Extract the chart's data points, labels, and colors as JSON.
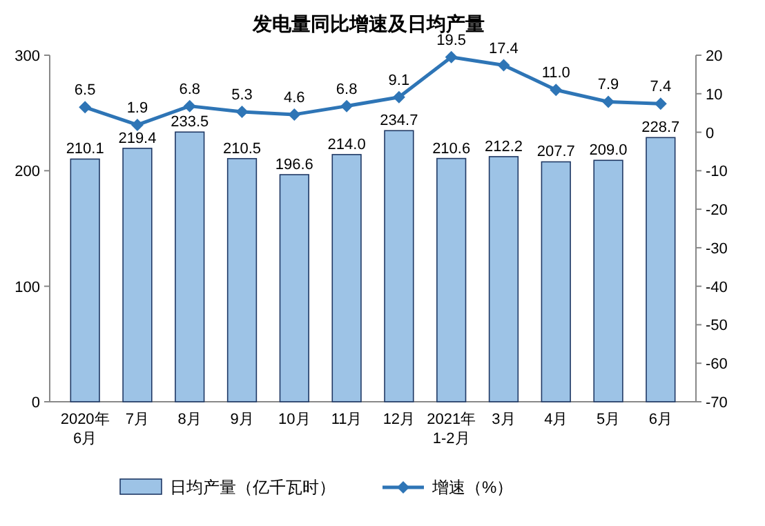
{
  "chart_data": {
    "type": "bar",
    "title": "发电量同比增速及日均产量",
    "categories": [
      "2020年\n6月",
      "7月",
      "8月",
      "9月",
      "10月",
      "11月",
      "12月",
      "2021年\n1-2月",
      "3月",
      "4月",
      "5月",
      "6月"
    ],
    "series": [
      {
        "name": "日均产量（亿千瓦时）",
        "color": "#9dc3e6",
        "values": [
          210.1,
          219.4,
          233.5,
          210.5,
          196.6,
          214.0,
          234.7,
          210.6,
          212.2,
          207.7,
          209.0,
          228.7
        ],
        "value_labels": [
          "210.1",
          "219.4",
          "233.5",
          "210.5",
          "196.6",
          "214.0",
          "234.7",
          "210.6",
          "212.2",
          "207.7",
          "209.0",
          "228.7"
        ]
      },
      {
        "name": "增速（%）",
        "type": "line",
        "axis": "y2",
        "color": "#2e75b6",
        "marker": "diamond",
        "values": [
          6.5,
          1.9,
          6.8,
          5.3,
          4.6,
          6.8,
          9.1,
          19.5,
          17.4,
          11.0,
          7.9,
          7.4
        ],
        "value_labels": [
          "6.5",
          "1.9",
          "6.8",
          "5.3",
          "4.6",
          "6.8",
          "9.1",
          "19.5",
          "17.4",
          "11.0",
          "7.9",
          "7.4"
        ]
      }
    ],
    "ylim": [
      0,
      300
    ],
    "yticks": [
      0,
      100,
      200,
      300
    ],
    "y2lim": [
      -70,
      20
    ],
    "y2ticks": [
      -70,
      -60,
      -50,
      -40,
      -30,
      -20,
      -10,
      0,
      10,
      20
    ],
    "grid": false,
    "legend": "bottom"
  }
}
